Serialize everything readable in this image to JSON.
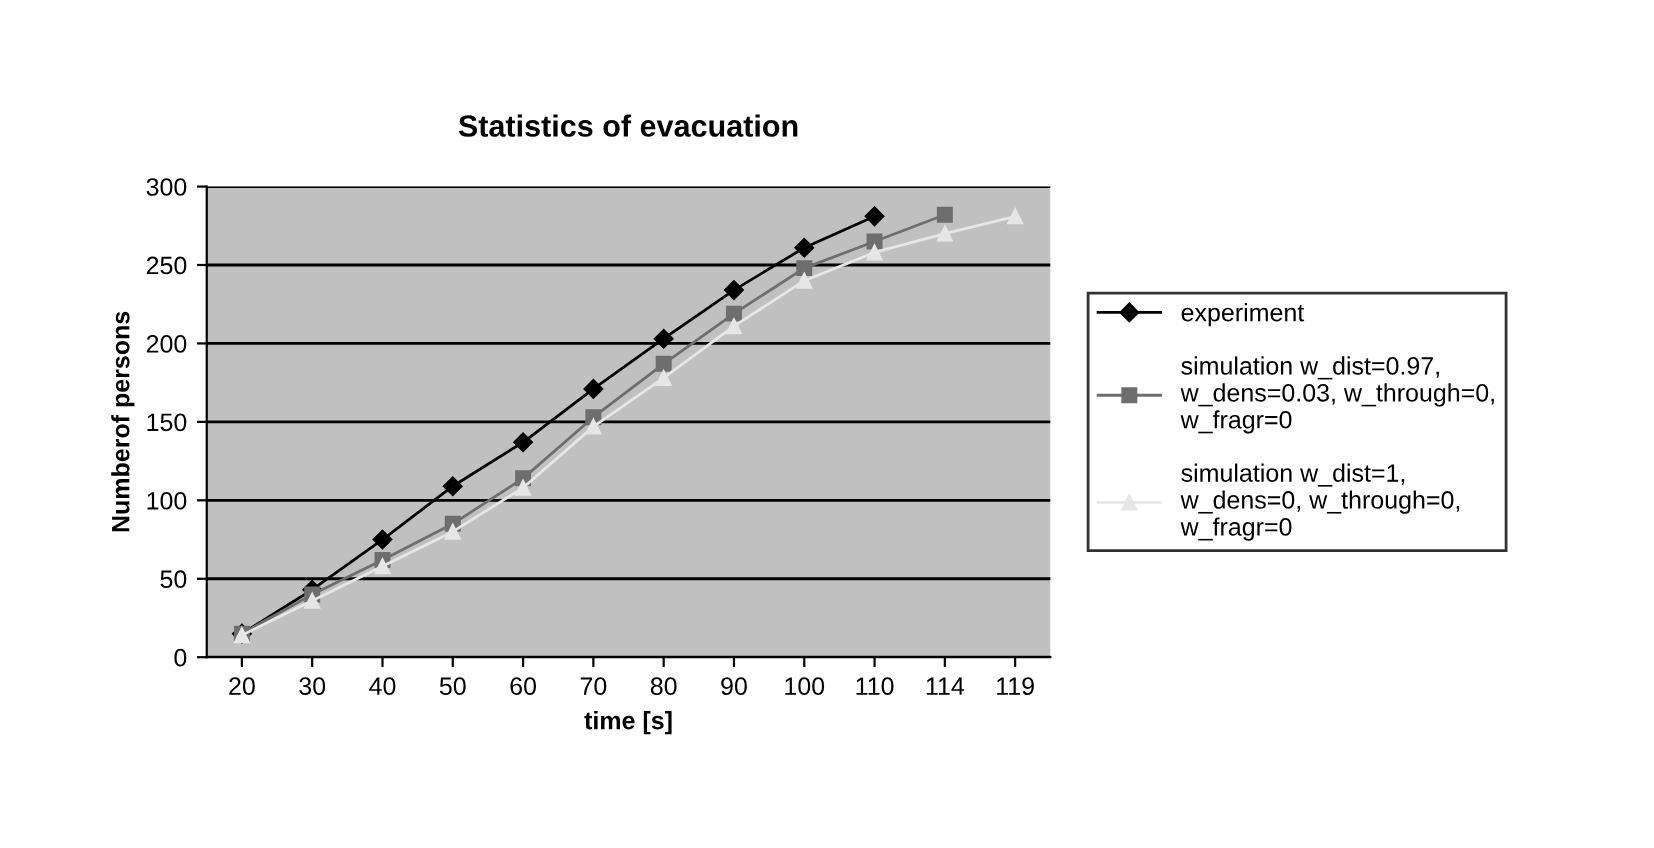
{
  "chart_data": {
    "type": "line",
    "title": "Statistics of evacuation",
    "xlabel": "time [s]",
    "ylabel": "Numberof persons",
    "categories": [
      "20",
      "30",
      "40",
      "50",
      "60",
      "70",
      "80",
      "90",
      "100",
      "110",
      "114",
      "119"
    ],
    "series": [
      {
        "name": "experiment",
        "color": "#000000",
        "marker": "diamond",
        "values": [
          15,
          43,
          75,
          109,
          137,
          171,
          203,
          234,
          261,
          281,
          null,
          null
        ]
      },
      {
        "name": "simulation w_dist=0.97,\nw_dens=0.03, w_through=0,\nw_fragr=0",
        "color": "#6e6e6e",
        "marker": "square",
        "values": [
          15,
          40,
          62,
          85,
          114,
          153,
          187,
          219,
          248,
          265,
          282,
          null
        ]
      },
      {
        "name": "simulation w_dist=1,\nw_dens=0, w_through=0,\nw_fragr=0",
        "color": "#e6e6e6",
        "marker": "triangle",
        "values": [
          14,
          36,
          58,
          80,
          108,
          147,
          178,
          211,
          240,
          258,
          270,
          281
        ]
      }
    ],
    "ylim": [
      0,
      300
    ],
    "yticks": [
      0,
      50,
      100,
      150,
      200,
      250,
      300
    ],
    "grid": "y",
    "legend": "right",
    "line_style": "solid"
  }
}
